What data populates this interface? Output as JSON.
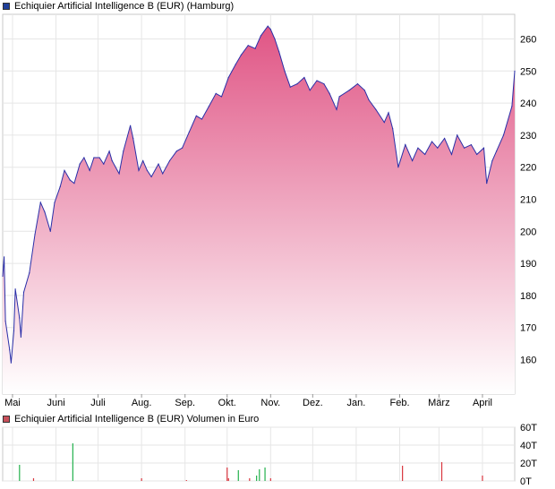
{
  "chart_data": [
    {
      "type": "area",
      "title": "Echiquier Artificial Intelligence B (EUR) (Hamburg)",
      "legend_color": "#1f3f9a",
      "line_color": "#2a2fa8",
      "fill_top_color": "#e05585",
      "fill_bottom_color": "#ffffff",
      "grid": true,
      "y_axis_side": "right",
      "ylim": [
        150,
        265
      ],
      "y_ticks": [
        160,
        170,
        180,
        190,
        200,
        210,
        220,
        230,
        240,
        250,
        260
      ],
      "x_range": [
        "2024-04-24",
        "2025-04-24"
      ],
      "x_ticks": [
        {
          "date": "2024-05-01",
          "label": "Mai"
        },
        {
          "date": "2024-06-01",
          "label": "Juni"
        },
        {
          "date": "2024-07-01",
          "label": "Juli"
        },
        {
          "date": "2024-08-01",
          "label": "Aug."
        },
        {
          "date": "2024-09-01",
          "label": "Sep."
        },
        {
          "date": "2024-10-01",
          "label": "Okt."
        },
        {
          "date": "2024-11-01",
          "label": "Nov."
        },
        {
          "date": "2024-12-01",
          "label": "Dez."
        },
        {
          "date": "2025-01-01",
          "label": "Jan."
        },
        {
          "date": "2025-02-01",
          "label": "Feb."
        },
        {
          "date": "2025-03-01",
          "label": "März"
        },
        {
          "date": "2025-04-01",
          "label": "April"
        }
      ],
      "series": [
        {
          "x": [
            "2024-04-24",
            "2024-04-25",
            "2024-04-26",
            "2024-04-29",
            "2024-04-30",
            "2024-05-02",
            "2024-05-03",
            "2024-05-06",
            "2024-05-07",
            "2024-05-09",
            "2024-05-13",
            "2024-05-17",
            "2024-05-21",
            "2024-05-24",
            "2024-05-28",
            "2024-05-31",
            "2024-06-04",
            "2024-06-07",
            "2024-06-11",
            "2024-06-14",
            "2024-06-18",
            "2024-06-21",
            "2024-06-25",
            "2024-06-28",
            "2024-07-02",
            "2024-07-05",
            "2024-07-09",
            "2024-07-11",
            "2024-07-16",
            "2024-07-19",
            "2024-07-24",
            "2024-07-26",
            "2024-07-30",
            "2024-08-02",
            "2024-08-05",
            "2024-08-08",
            "2024-08-13",
            "2024-08-16",
            "2024-08-21",
            "2024-08-26",
            "2024-08-30",
            "2024-09-04",
            "2024-09-09",
            "2024-09-13",
            "2024-09-18",
            "2024-09-23",
            "2024-09-27",
            "2024-10-02",
            "2024-10-07",
            "2024-10-11",
            "2024-10-16",
            "2024-10-21",
            "2024-10-25",
            "2024-10-30",
            "2024-11-01",
            "2024-11-04",
            "2024-11-07",
            "2024-11-11",
            "2024-11-15",
            "2024-11-20",
            "2024-11-25",
            "2024-11-29",
            "2024-12-04",
            "2024-12-09",
            "2024-12-13",
            "2024-12-18",
            "2024-12-20",
            "2024-12-27",
            "2025-01-02",
            "2025-01-07",
            "2025-01-10",
            "2025-01-15",
            "2025-01-21",
            "2025-01-24",
            "2025-01-27",
            "2025-01-31",
            "2025-02-05",
            "2025-02-10",
            "2025-02-14",
            "2025-02-19",
            "2025-02-24",
            "2025-02-28",
            "2025-03-05",
            "2025-03-10",
            "2025-03-14",
            "2025-03-19",
            "2025-03-24",
            "2025-03-28",
            "2025-04-02",
            "2025-04-04",
            "2025-04-08",
            "2025-04-11",
            "2025-04-16",
            "2025-04-22",
            "2025-04-24"
          ],
          "values": [
            186,
            192,
            172,
            163,
            159,
            169,
            182,
            173,
            167,
            181,
            187,
            199,
            209,
            206,
            200,
            209,
            214,
            219,
            216,
            215,
            221,
            223,
            219,
            223,
            223,
            221,
            225,
            222,
            218,
            225,
            233,
            229,
            219,
            222,
            219,
            217,
            221,
            218,
            222,
            225,
            226,
            231,
            236,
            235,
            239,
            243,
            242,
            248,
            252,
            255,
            258,
            257,
            261,
            264,
            263,
            260,
            256,
            250,
            245,
            246,
            248,
            244,
            247,
            246,
            243,
            238,
            242,
            244,
            246,
            244,
            241,
            238,
            234,
            237,
            232,
            220,
            227,
            222,
            226,
            224,
            228,
            226,
            229,
            224,
            230,
            226,
            227,
            224,
            226,
            215,
            222,
            225,
            230,
            239,
            250
          ]
        }
      ]
    },
    {
      "type": "bar",
      "title": "Echiquier Artificial Intelligence B (EUR) Volumen in Euro",
      "legend_color": "#c8505a",
      "grid": true,
      "y_axis_side": "right",
      "ylim": [
        0,
        60
      ],
      "y_ticks": [
        0,
        20,
        40,
        60
      ],
      "y_tick_labels": [
        "0T",
        "20T",
        "40T",
        "60T"
      ],
      "series": [
        {
          "x": [
            "2024-05-06",
            "2024-05-16",
            "2024-06-13",
            "2024-08-01",
            "2024-09-02",
            "2024-10-01",
            "2024-10-02",
            "2024-10-09",
            "2024-10-17",
            "2024-10-22",
            "2024-10-24",
            "2024-10-28",
            "2024-11-01",
            "2025-02-03",
            "2025-03-03",
            "2025-04-01"
          ],
          "values": [
            18,
            3,
            42,
            3,
            1,
            15,
            3,
            12,
            3,
            6,
            13,
            15,
            3,
            17,
            21,
            6
          ],
          "colors": [
            "green",
            "red",
            "green",
            "red",
            "red",
            "red",
            "red",
            "green",
            "red",
            "green",
            "green",
            "green",
            "red",
            "red",
            "red",
            "red"
          ]
        }
      ]
    }
  ]
}
